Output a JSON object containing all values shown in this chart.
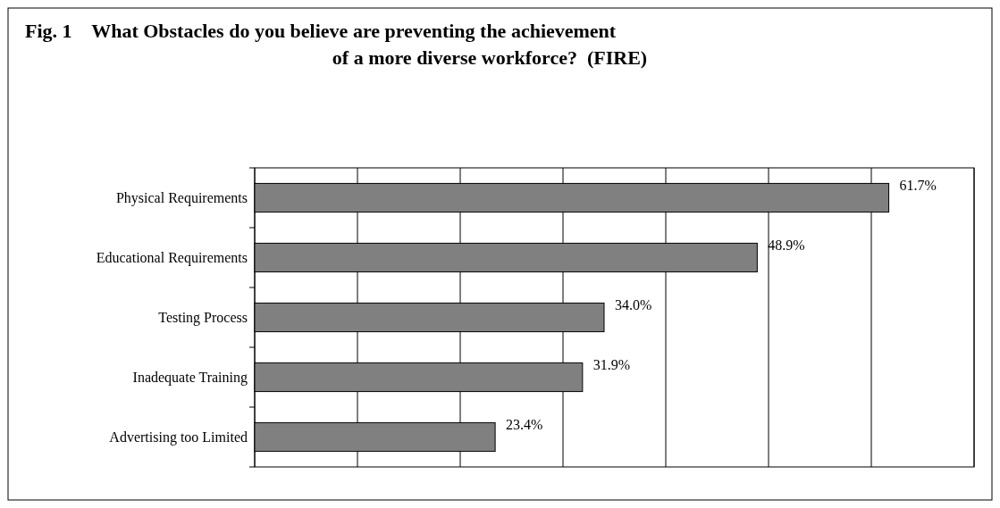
{
  "chart_data": {
    "type": "bar",
    "orientation": "horizontal",
    "title": "Fig. 1    What Obstacles do you believe are preventing the achievement of a more diverse workforce?  (FIRE)",
    "categories": [
      "Physical Requirements",
      "Educational Requirements",
      "Testing Process",
      "Inadequate Training",
      "Advertising too Limited"
    ],
    "values": [
      61.7,
      48.9,
      34.0,
      31.9,
      23.4
    ],
    "value_labels": [
      "61.7%",
      "48.9%",
      "34.0%",
      "31.9%",
      "23.4%"
    ],
    "color": "#808080",
    "xlim": [
      0,
      70
    ],
    "xticks": [
      {
        "value": 0,
        "label": null
      },
      {
        "value": 10,
        "label": null
      },
      {
        "value": 20,
        "label": null
      },
      {
        "value": 30,
        "label": null
      },
      {
        "value": 40,
        "label": null
      },
      {
        "value": 50,
        "label": null
      },
      {
        "value": 60,
        "label": null
      },
      {
        "value": 70,
        "label": null
      }
    ],
    "grid": "x",
    "tick_labels": "y"
  }
}
